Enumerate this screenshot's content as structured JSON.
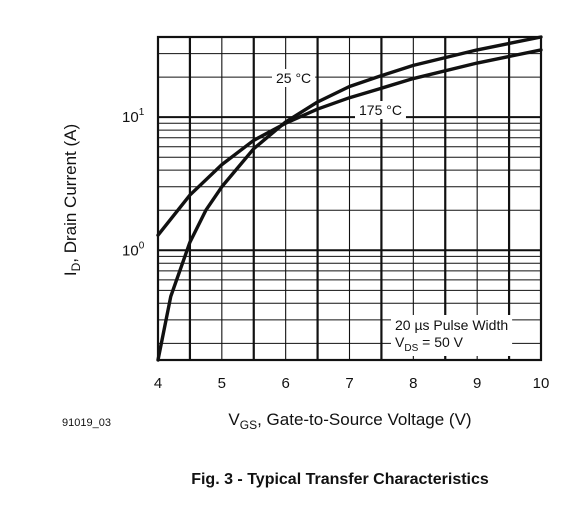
{
  "chart_data": {
    "type": "line",
    "xlabel": {
      "main": "V",
      "sub": "GS",
      "rest": ", Gate-to-Source Voltage (V)"
    },
    "ylabel": {
      "main": "I",
      "sub": "D",
      "rest": ", Drain Current (A)"
    },
    "xlim": [
      4,
      10
    ],
    "ylim": [
      0.15,
      40
    ],
    "yscale": "log",
    "grid": true,
    "x_ticks": [
      "4",
      "5",
      "6",
      "7",
      "8",
      "9",
      "10"
    ],
    "y_ticks": [
      {
        "value": 1,
        "base": "10",
        "exp": "0"
      },
      {
        "value": 10,
        "base": "10",
        "exp": "1"
      }
    ],
    "series": [
      {
        "name": "25 °C",
        "x": [
          4.0,
          4.2,
          4.5,
          4.75,
          5.0,
          5.5,
          6.0,
          6.5,
          7.0,
          7.5,
          8.0,
          9.0,
          10.0
        ],
        "y": [
          0.15,
          0.45,
          1.15,
          2.0,
          3.0,
          5.8,
          9.2,
          13.0,
          17.0,
          20.5,
          24.5,
          32.0,
          40.0
        ]
      },
      {
        "name": "175 °C",
        "x": [
          4.0,
          4.5,
          5.0,
          5.5,
          6.0,
          6.5,
          7.0,
          7.5,
          8.0,
          9.0,
          10.0
        ],
        "y": [
          1.3,
          2.6,
          4.4,
          6.7,
          9.0,
          11.5,
          14.0,
          16.5,
          19.5,
          25.5,
          32.0
        ]
      }
    ],
    "annotations": {
      "pulse_width": "20 µs Pulse Width",
      "vds": {
        "main": "V",
        "sub": "DS",
        "rest": " = 50 V"
      }
    }
  },
  "figure_id": "91019_03",
  "caption": "Fig. 3 - Typical Transfer Characteristics"
}
